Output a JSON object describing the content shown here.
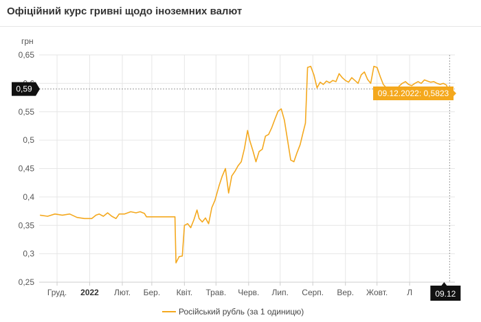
{
  "header": {
    "title": "Офіційний курс гривні щодо іноземних валют"
  },
  "colors": {
    "series": "#f4a81d",
    "marker_dark": "#111111",
    "tooltip_bg": "#f4a81d",
    "grid": "#e6e6e6"
  },
  "chart_data": {
    "type": "line",
    "ylabel": "грн",
    "ylim": [
      0.25,
      0.65
    ],
    "y_ticks": [
      "0,25",
      "0,3",
      "0,35",
      "0,4",
      "0,45",
      "0,5",
      "0,55",
      "0,6",
      "0,65"
    ],
    "y_tick_values": [
      0.25,
      0.3,
      0.35,
      0.4,
      0.45,
      0.5,
      0.55,
      0.6,
      0.65
    ],
    "x_range": [
      "2021-11-14",
      "2022-12-14"
    ],
    "x_ticks": [
      {
        "label": "Груд.",
        "date": "2021-12-01",
        "bold": false
      },
      {
        "label": "2022",
        "date": "2022-01-01",
        "bold": true
      },
      {
        "label": "Лют.",
        "date": "2022-02-01",
        "bold": false
      },
      {
        "label": "Бер.",
        "date": "2022-03-01",
        "bold": false
      },
      {
        "label": "Квіт.",
        "date": "2022-04-01",
        "bold": false
      },
      {
        "label": "Трав.",
        "date": "2022-05-01",
        "bold": false
      },
      {
        "label": "Черв.",
        "date": "2022-06-01",
        "bold": false
      },
      {
        "label": "Лип.",
        "date": "2022-07-01",
        "bold": false
      },
      {
        "label": "Серп.",
        "date": "2022-08-01",
        "bold": false
      },
      {
        "label": "Вер.",
        "date": "2022-09-01",
        "bold": false
      },
      {
        "label": "Жовт.",
        "date": "2022-10-01",
        "bold": false
      },
      {
        "label": "Л",
        "date": "2022-11-01",
        "bold": false
      }
    ],
    "grid": true,
    "legend": "bottom",
    "series": [
      {
        "name": "Російський рубль (за 1 одиницю)",
        "points": [
          [
            "2021-11-15",
            0.368
          ],
          [
            "2021-11-22",
            0.366
          ],
          [
            "2021-11-29",
            0.37
          ],
          [
            "2021-12-06",
            0.368
          ],
          [
            "2021-12-13",
            0.37
          ],
          [
            "2021-12-20",
            0.364
          ],
          [
            "2021-12-27",
            0.362
          ],
          [
            "2022-01-03",
            0.362
          ],
          [
            "2022-01-07",
            0.368
          ],
          [
            "2022-01-10",
            0.37
          ],
          [
            "2022-01-14",
            0.366
          ],
          [
            "2022-01-18",
            0.372
          ],
          [
            "2022-01-22",
            0.366
          ],
          [
            "2022-01-26",
            0.362
          ],
          [
            "2022-01-29",
            0.37
          ],
          [
            "2022-02-03",
            0.37
          ],
          [
            "2022-02-09",
            0.374
          ],
          [
            "2022-02-14",
            0.372
          ],
          [
            "2022-02-18",
            0.374
          ],
          [
            "2022-02-22",
            0.371
          ],
          [
            "2022-02-24",
            0.365
          ],
          [
            "2022-03-03",
            0.365
          ],
          [
            "2022-03-10",
            0.365
          ],
          [
            "2022-03-17",
            0.365
          ],
          [
            "2022-03-23",
            0.365
          ],
          [
            "2022-03-24",
            0.284
          ],
          [
            "2022-03-27",
            0.295
          ],
          [
            "2022-03-30",
            0.296
          ],
          [
            "2022-04-01",
            0.35
          ],
          [
            "2022-04-04",
            0.353
          ],
          [
            "2022-04-07",
            0.346
          ],
          [
            "2022-04-10",
            0.36
          ],
          [
            "2022-04-13",
            0.377
          ],
          [
            "2022-04-15",
            0.362
          ],
          [
            "2022-04-18",
            0.356
          ],
          [
            "2022-04-21",
            0.363
          ],
          [
            "2022-04-24",
            0.353
          ],
          [
            "2022-04-27",
            0.381
          ],
          [
            "2022-04-30",
            0.394
          ],
          [
            "2022-05-04",
            0.42
          ],
          [
            "2022-05-07",
            0.437
          ],
          [
            "2022-05-10",
            0.45
          ],
          [
            "2022-05-13",
            0.407
          ],
          [
            "2022-05-16",
            0.437
          ],
          [
            "2022-05-19",
            0.445
          ],
          [
            "2022-05-22",
            0.455
          ],
          [
            "2022-05-25",
            0.462
          ],
          [
            "2022-05-28",
            0.485
          ],
          [
            "2022-05-31",
            0.517
          ],
          [
            "2022-06-02",
            0.5
          ],
          [
            "2022-06-05",
            0.482
          ],
          [
            "2022-06-08",
            0.462
          ],
          [
            "2022-06-11",
            0.48
          ],
          [
            "2022-06-14",
            0.484
          ],
          [
            "2022-06-17",
            0.507
          ],
          [
            "2022-06-20",
            0.51
          ],
          [
            "2022-06-23",
            0.522
          ],
          [
            "2022-06-26",
            0.537
          ],
          [
            "2022-06-29",
            0.551
          ],
          [
            "2022-07-02",
            0.555
          ],
          [
            "2022-07-05",
            0.535
          ],
          [
            "2022-07-08",
            0.5
          ],
          [
            "2022-07-11",
            0.465
          ],
          [
            "2022-07-14",
            0.462
          ],
          [
            "2022-07-17",
            0.478
          ],
          [
            "2022-07-20",
            0.492
          ],
          [
            "2022-07-23",
            0.515
          ],
          [
            "2022-07-25",
            0.53
          ],
          [
            "2022-07-27",
            0.628
          ],
          [
            "2022-07-30",
            0.63
          ],
          [
            "2022-08-02",
            0.615
          ],
          [
            "2022-08-05",
            0.592
          ],
          [
            "2022-08-08",
            0.602
          ],
          [
            "2022-08-11",
            0.598
          ],
          [
            "2022-08-14",
            0.604
          ],
          [
            "2022-08-17",
            0.601
          ],
          [
            "2022-08-20",
            0.605
          ],
          [
            "2022-08-23",
            0.603
          ],
          [
            "2022-08-26",
            0.617
          ],
          [
            "2022-08-29",
            0.61
          ],
          [
            "2022-09-01",
            0.605
          ],
          [
            "2022-09-04",
            0.602
          ],
          [
            "2022-09-07",
            0.61
          ],
          [
            "2022-09-10",
            0.605
          ],
          [
            "2022-09-13",
            0.6
          ],
          [
            "2022-09-16",
            0.615
          ],
          [
            "2022-09-19",
            0.62
          ],
          [
            "2022-09-22",
            0.607
          ],
          [
            "2022-09-25",
            0.6
          ],
          [
            "2022-09-28",
            0.63
          ],
          [
            "2022-10-01",
            0.628
          ],
          [
            "2022-10-04",
            0.612
          ],
          [
            "2022-10-07",
            0.598
          ],
          [
            "2022-10-10",
            0.592
          ],
          [
            "2022-10-13",
            0.585
          ],
          [
            "2022-10-16",
            0.572
          ],
          [
            "2022-10-19",
            0.58
          ],
          [
            "2022-10-22",
            0.595
          ],
          [
            "2022-10-25",
            0.6
          ],
          [
            "2022-10-28",
            0.603
          ],
          [
            "2022-10-31",
            0.598
          ],
          [
            "2022-11-03",
            0.596
          ],
          [
            "2022-11-06",
            0.6
          ],
          [
            "2022-11-09",
            0.603
          ],
          [
            "2022-11-12",
            0.6
          ],
          [
            "2022-11-15",
            0.606
          ],
          [
            "2022-11-18",
            0.604
          ],
          [
            "2022-11-21",
            0.602
          ],
          [
            "2022-11-24",
            0.603
          ],
          [
            "2022-11-27",
            0.6
          ],
          [
            "2022-11-30",
            0.598
          ],
          [
            "2022-12-03",
            0.6
          ],
          [
            "2022-12-06",
            0.597
          ],
          [
            "2022-12-09",
            0.5823
          ]
        ]
      }
    ],
    "crosshair": {
      "y_label": "0,59",
      "y_value": 0.59,
      "x_label": "09.12",
      "x_date": "2022-12-09"
    },
    "tooltip": {
      "text": "09.12.2022: 0,5823",
      "date": "2022-12-09",
      "value": 0.5823
    }
  }
}
